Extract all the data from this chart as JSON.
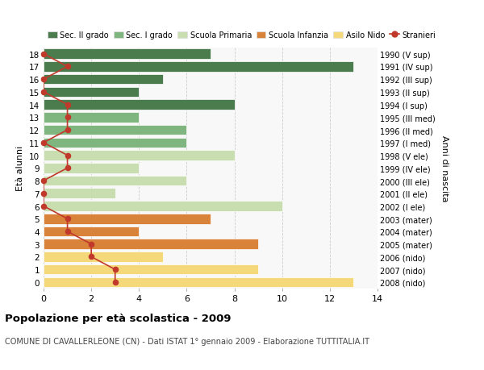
{
  "ages": [
    18,
    17,
    16,
    15,
    14,
    13,
    12,
    11,
    10,
    9,
    8,
    7,
    6,
    5,
    4,
    3,
    2,
    1,
    0
  ],
  "years": [
    "1990 (V sup)",
    "1991 (IV sup)",
    "1992 (III sup)",
    "1993 (II sup)",
    "1994 (I sup)",
    "1995 (III med)",
    "1996 (II med)",
    "1997 (I med)",
    "1998 (V ele)",
    "1999 (IV ele)",
    "2000 (III ele)",
    "2001 (II ele)",
    "2002 (I ele)",
    "2003 (mater)",
    "2004 (mater)",
    "2005 (mater)",
    "2006 (nido)",
    "2007 (nido)",
    "2008 (nido)"
  ],
  "bar_values": [
    7,
    13,
    5,
    4,
    8,
    4,
    6,
    6,
    8,
    4,
    6,
    3,
    10,
    7,
    4,
    9,
    5,
    9,
    13
  ],
  "bar_colors": [
    "#4a7c4e",
    "#4a7c4e",
    "#4a7c4e",
    "#4a7c4e",
    "#4a7c4e",
    "#7fb57f",
    "#7fb57f",
    "#7fb57f",
    "#c8ddb0",
    "#c8ddb0",
    "#c8ddb0",
    "#c8ddb0",
    "#c8ddb0",
    "#d9823a",
    "#d9823a",
    "#d9823a",
    "#f5d87a",
    "#f5d87a",
    "#f5d87a"
  ],
  "stranieri_values": [
    0,
    1,
    0,
    0,
    1,
    1,
    1,
    0,
    1,
    1,
    0,
    0,
    0,
    1,
    1,
    2,
    2,
    3,
    3
  ],
  "legend_labels": [
    "Sec. II grado",
    "Sec. I grado",
    "Scuola Primaria",
    "Scuola Infanzia",
    "Asilo Nido",
    "Stranieri"
  ],
  "legend_colors": [
    "#4a7c4e",
    "#7fb57f",
    "#c8ddb0",
    "#d9823a",
    "#f5d87a",
    "#c0392b"
  ],
  "title": "Popolazione per età scolastica - 2009",
  "subtitle": "COMUNE DI CAVALLERLEONE (CN) - Dati ISTAT 1° gennaio 2009 - Elaborazione TUTTITALIA.IT",
  "ylabel_left": "Età alunni",
  "ylabel_right": "Anni di nascita",
  "xlim": [
    0,
    14
  ],
  "xticks": [
    0,
    2,
    4,
    6,
    8,
    10,
    12,
    14
  ],
  "bg_color": "#ffffff",
  "plot_bg_color": "#f8f8f8",
  "grid_color": "#cccccc"
}
